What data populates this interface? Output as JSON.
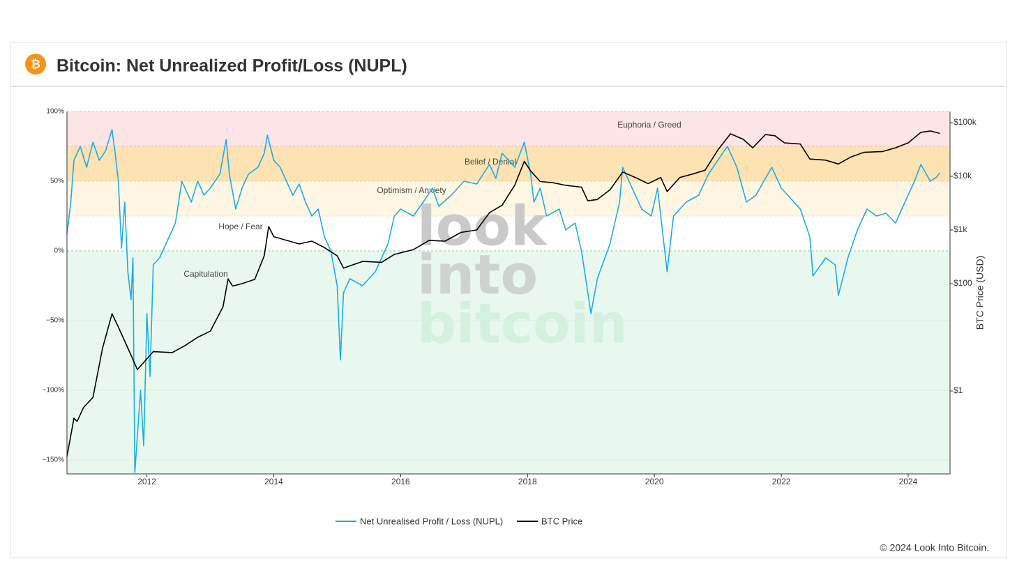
{
  "header": {
    "title": "Bitcoin: Net Unrealized Profit/Loss (NUPL)"
  },
  "chart_data": {
    "type": "line",
    "xlim": [
      2010.74,
      2024.66
    ],
    "xticks": [
      2012,
      2014,
      2016,
      2018,
      2020,
      2022,
      2024
    ],
    "ylim": [
      -160,
      100
    ],
    "yticks": [
      {
        "value": 100,
        "label": "100%"
      },
      {
        "value": 50,
        "label": "50%"
      },
      {
        "value": 0,
        "label": "0%"
      },
      {
        "value": -50,
        "label": "−50%"
      },
      {
        "value": -100,
        "label": "−100%"
      },
      {
        "value": -150,
        "label": "−150%"
      }
    ],
    "y2lim": [
      0.0285,
      161400
    ],
    "y2log": true,
    "y2ticks": [
      {
        "value": 1,
        "label": "$1"
      },
      {
        "value": 100,
        "label": "$100"
      },
      {
        "value": 1000,
        "label": "$1k"
      },
      {
        "value": 10000,
        "label": "$10k"
      },
      {
        "value": 100000,
        "label": "$100k"
      }
    ],
    "y2label": "BTC Price (USD)",
    "zones": [
      {
        "name": "Euphoria / Greed",
        "min": 75,
        "color": "#fde4e6",
        "line": "#f3b3b8"
      },
      {
        "name": "Belief / Denial",
        "min": 50,
        "color": "#fde3b3",
        "line": "#f0c890"
      },
      {
        "name": "Optimism / Anxiety",
        "min": 25,
        "color": "#fff6e3",
        "line": "#f1dcb0"
      },
      {
        "name": "Hope / Fear",
        "min": 0,
        "color": "#ffffff",
        "line": "#7fcf9a"
      },
      {
        "name": "Capitulation",
        "color": "#e8f8ef"
      }
    ],
    "watermark": [
      {
        "text": "look",
        "color": "#c9c9c9"
      },
      {
        "text": "into",
        "color": "#cfd3d0"
      },
      {
        "text": "bitcoin",
        "color": "#d4f0de"
      }
    ],
    "series": [
      {
        "name": "Net Unrealised Profit / Loss (NUPL)",
        "color": "#1aade4",
        "x": [
          2010.74,
          2010.8,
          2010.85,
          2010.95,
          2011.05,
          2011.15,
          2011.25,
          2011.35,
          2011.45,
          2011.5,
          2011.55,
          2011.6,
          2011.65,
          2011.7,
          2011.75,
          2011.78,
          2011.81,
          2011.9,
          2011.95,
          2012.0,
          2012.05,
          2012.1,
          2012.2,
          2012.3,
          2012.45,
          2012.55,
          2012.7,
          2012.8,
          2012.9,
          2013.0,
          2013.15,
          2013.25,
          2013.3,
          2013.4,
          2013.5,
          2013.6,
          2013.75,
          2013.85,
          2013.9,
          2014.0,
          2014.1,
          2014.2,
          2014.3,
          2014.4,
          2014.5,
          2014.6,
          2014.7,
          2014.8,
          2014.9,
          2015.0,
          2015.05,
          2015.1,
          2015.2,
          2015.4,
          2015.6,
          2015.8,
          2015.9,
          2016.0,
          2016.2,
          2016.4,
          2016.5,
          2016.6,
          2016.8,
          2017.0,
          2017.2,
          2017.4,
          2017.5,
          2017.6,
          2017.8,
          2017.95,
          2018.05,
          2018.1,
          2018.2,
          2018.3,
          2018.5,
          2018.6,
          2018.75,
          2018.85,
          2018.95,
          2019.0,
          2019.1,
          2019.3,
          2019.45,
          2019.5,
          2019.65,
          2019.8,
          2019.95,
          2020.05,
          2020.2,
          2020.3,
          2020.5,
          2020.7,
          2020.85,
          2021.0,
          2021.15,
          2021.3,
          2021.45,
          2021.6,
          2021.85,
          2022.0,
          2022.1,
          2022.3,
          2022.45,
          2022.5,
          2022.7,
          2022.85,
          2022.9,
          2023.05,
          2023.2,
          2023.35,
          2023.5,
          2023.65,
          2023.8,
          2023.95,
          2024.1,
          2024.2,
          2024.35,
          2024.45,
          2024.5
        ],
        "values": [
          12,
          35,
          65,
          75,
          60,
          78,
          65,
          72,
          87,
          70,
          50,
          2,
          35,
          -15,
          -35,
          -5,
          -159,
          -100,
          -140,
          -45,
          -90,
          -10,
          -5,
          5,
          20,
          50,
          35,
          50,
          40,
          45,
          55,
          80,
          55,
          30,
          45,
          55,
          60,
          70,
          83,
          65,
          60,
          50,
          40,
          48,
          35,
          25,
          30,
          10,
          0,
          -25,
          -78,
          -30,
          -20,
          -25,
          -15,
          5,
          25,
          30,
          25,
          38,
          45,
          32,
          40,
          50,
          48,
          62,
          52,
          70,
          60,
          78,
          55,
          35,
          45,
          25,
          30,
          15,
          20,
          0,
          -30,
          -45,
          -20,
          5,
          35,
          60,
          45,
          30,
          25,
          45,
          -15,
          25,
          35,
          40,
          55,
          65,
          75,
          60,
          35,
          40,
          60,
          45,
          40,
          30,
          10,
          -18,
          -5,
          -10,
          -32,
          -5,
          15,
          30,
          25,
          27,
          20,
          35,
          50,
          62,
          50,
          53,
          56
        ]
      },
      {
        "name": "BTC Price",
        "color": "#000000",
        "axis": "y2",
        "x": [
          2010.74,
          2010.85,
          2010.9,
          2011.0,
          2011.15,
          2011.3,
          2011.45,
          2011.55,
          2011.7,
          2011.85,
          2011.95,
          2012.1,
          2012.4,
          2012.6,
          2012.8,
          2013.0,
          2013.2,
          2013.28,
          2013.35,
          2013.5,
          2013.7,
          2013.85,
          2013.92,
          2014.0,
          2014.2,
          2014.4,
          2014.6,
          2014.8,
          2015.0,
          2015.1,
          2015.4,
          2015.7,
          2015.9,
          2016.2,
          2016.45,
          2016.7,
          2016.95,
          2017.2,
          2017.4,
          2017.6,
          2017.8,
          2017.95,
          2018.05,
          2018.2,
          2018.4,
          2018.6,
          2018.85,
          2018.95,
          2019.1,
          2019.3,
          2019.5,
          2019.7,
          2019.9,
          2020.1,
          2020.2,
          2020.4,
          2020.6,
          2020.8,
          2021.0,
          2021.2,
          2021.4,
          2021.55,
          2021.75,
          2021.9,
          2022.05,
          2022.3,
          2022.45,
          2022.7,
          2022.9,
          2023.1,
          2023.3,
          2023.6,
          2023.8,
          2024.0,
          2024.2,
          2024.35,
          2024.5
        ],
        "values": [
          0.06,
          0.31,
          0.27,
          0.49,
          0.76,
          6.2,
          27.5,
          15.5,
          6.3,
          2.5,
          3.4,
          5.4,
          5.2,
          7,
          10,
          13,
          37,
          123,
          90,
          100,
          120,
          330,
          1160,
          750,
          640,
          550,
          620,
          470,
          330,
          195,
          260,
          250,
          350,
          430,
          640,
          620,
          900,
          1000,
          2100,
          2900,
          6900,
          19000,
          12600,
          8000,
          7600,
          6800,
          6300,
          3500,
          3700,
          5600,
          12000,
          9500,
          7300,
          9500,
          5200,
          9500,
          11000,
          13000,
          31000,
          62000,
          49000,
          34000,
          60000,
          57000,
          42000,
          40000,
          21000,
          20000,
          17000,
          23000,
          28000,
          29000,
          34000,
          42000,
          66000,
          70000,
          63000
        ]
      }
    ]
  },
  "footer": {
    "copyright": "© 2024 Look Into Bitcoin."
  }
}
